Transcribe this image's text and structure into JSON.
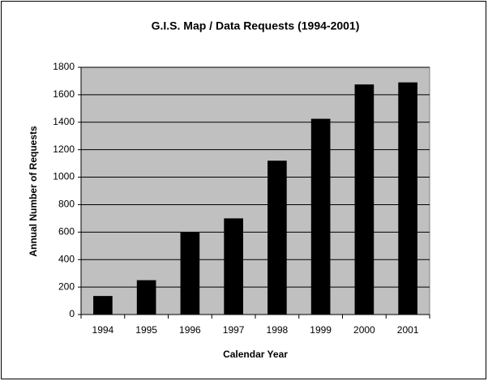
{
  "chart_data": {
    "type": "bar",
    "title": "G.I.S. Map / Data Requests (1994-2001)",
    "x_label": "Calendar Year",
    "y_label": "Annual Number of Requests",
    "categories": [
      "1994",
      "1995",
      "1996",
      "1997",
      "1998",
      "1999",
      "2000",
      "2001"
    ],
    "values": [
      135,
      250,
      600,
      700,
      1120,
      1425,
      1675,
      1690
    ],
    "color": "#000000",
    "plot_background": "#c0c0c0",
    "ylim": [
      0,
      1800
    ],
    "yticks": [
      0,
      200,
      400,
      600,
      800,
      1000,
      1200,
      1400,
      1600,
      1800
    ],
    "grid": true
  }
}
